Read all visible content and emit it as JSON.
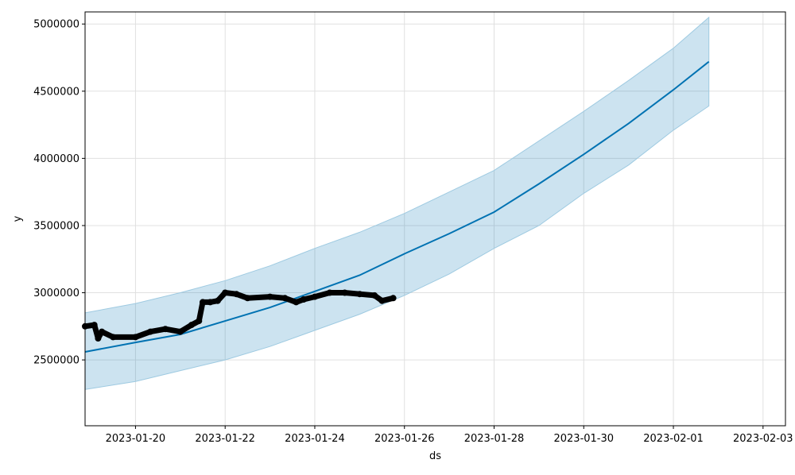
{
  "chart_data": {
    "type": "line",
    "title": "",
    "xlabel": "ds",
    "ylabel": "y",
    "x_type": "date",
    "xlim": [
      "2023-01-18T21:00",
      "2023-02-03T12:00"
    ],
    "ylim": [
      2010000,
      5090000
    ],
    "x_tick_labels": [
      "2023-01-20",
      "2023-01-22",
      "2023-01-24",
      "2023-01-26",
      "2023-01-28",
      "2023-01-30",
      "2023-02-01",
      "2023-02-03"
    ],
    "y_tick_values": [
      2500000,
      3000000,
      3500000,
      4000000,
      4500000,
      5000000
    ],
    "y_tick_labels": [
      "2500000",
      "3000000",
      "3500000",
      "4000000",
      "4500000",
      "5000000"
    ],
    "grid": true,
    "legend": "none",
    "series": [
      {
        "kind": "forecast",
        "color": "#0072B2",
        "x": [
          "2023-01-18T21:00",
          "2023-01-20T00:00",
          "2023-01-21T00:00",
          "2023-01-22T00:00",
          "2023-01-23T00:00",
          "2023-01-24T00:00",
          "2023-01-25T00:00",
          "2023-01-26T00:00",
          "2023-01-27T00:00",
          "2023-01-28T00:00",
          "2023-01-29T00:00",
          "2023-01-30T00:00",
          "2023-01-31T00:00",
          "2023-02-01T00:00",
          "2023-02-01T19:00"
        ],
        "y": [
          2560000,
          2630000,
          2690000,
          2790000,
          2890000,
          3010000,
          3130000,
          3290000,
          3440000,
          3600000,
          3810000,
          4030000,
          4260000,
          4510000,
          4720000
        ]
      },
      {
        "kind": "uncertainty-band",
        "color": "#0072B2",
        "x": [
          "2023-01-18T21:00",
          "2023-01-20T00:00",
          "2023-01-21T00:00",
          "2023-01-22T00:00",
          "2023-01-23T00:00",
          "2023-01-24T00:00",
          "2023-01-25T00:00",
          "2023-01-26T00:00",
          "2023-01-27T00:00",
          "2023-01-28T00:00",
          "2023-01-29T00:00",
          "2023-01-30T00:00",
          "2023-01-31T00:00",
          "2023-02-01T00:00",
          "2023-02-01T19:00"
        ],
        "lower": [
          2280000,
          2340000,
          2420000,
          2500000,
          2600000,
          2720000,
          2840000,
          2980000,
          3140000,
          3330000,
          3500000,
          3740000,
          3950000,
          4210000,
          4390000
        ],
        "upper": [
          2850000,
          2920000,
          3000000,
          3090000,
          3200000,
          3330000,
          3450000,
          3590000,
          3750000,
          3910000,
          4130000,
          4350000,
          4580000,
          4820000,
          5050000
        ]
      },
      {
        "kind": "observed",
        "color": "#000000",
        "x": [
          "2023-01-18T21:00",
          "2023-01-19T02:00",
          "2023-01-19T04:00",
          "2023-01-19T06:00",
          "2023-01-19T12:00",
          "2023-01-20T00:00",
          "2023-01-20T08:00",
          "2023-01-20T16:00",
          "2023-01-21T00:00",
          "2023-01-21T06:00",
          "2023-01-21T10:00",
          "2023-01-21T12:00",
          "2023-01-21T16:00",
          "2023-01-21T20:00",
          "2023-01-22T00:00",
          "2023-01-22T06:00",
          "2023-01-22T12:00",
          "2023-01-23T00:00",
          "2023-01-23T08:00",
          "2023-01-23T14:00",
          "2023-01-23T18:00",
          "2023-01-24T00:00",
          "2023-01-24T08:00",
          "2023-01-24T16:00",
          "2023-01-25T00:00",
          "2023-01-25T08:00",
          "2023-01-25T12:00",
          "2023-01-25T18:00"
        ],
        "y": [
          2750000,
          2760000,
          2660000,
          2710000,
          2670000,
          2670000,
          2710000,
          2730000,
          2710000,
          2760000,
          2790000,
          2930000,
          2930000,
          2940000,
          3000000,
          2990000,
          2960000,
          2970000,
          2960000,
          2930000,
          2950000,
          2970000,
          3000000,
          3000000,
          2990000,
          2980000,
          2940000,
          2960000
        ]
      }
    ]
  }
}
